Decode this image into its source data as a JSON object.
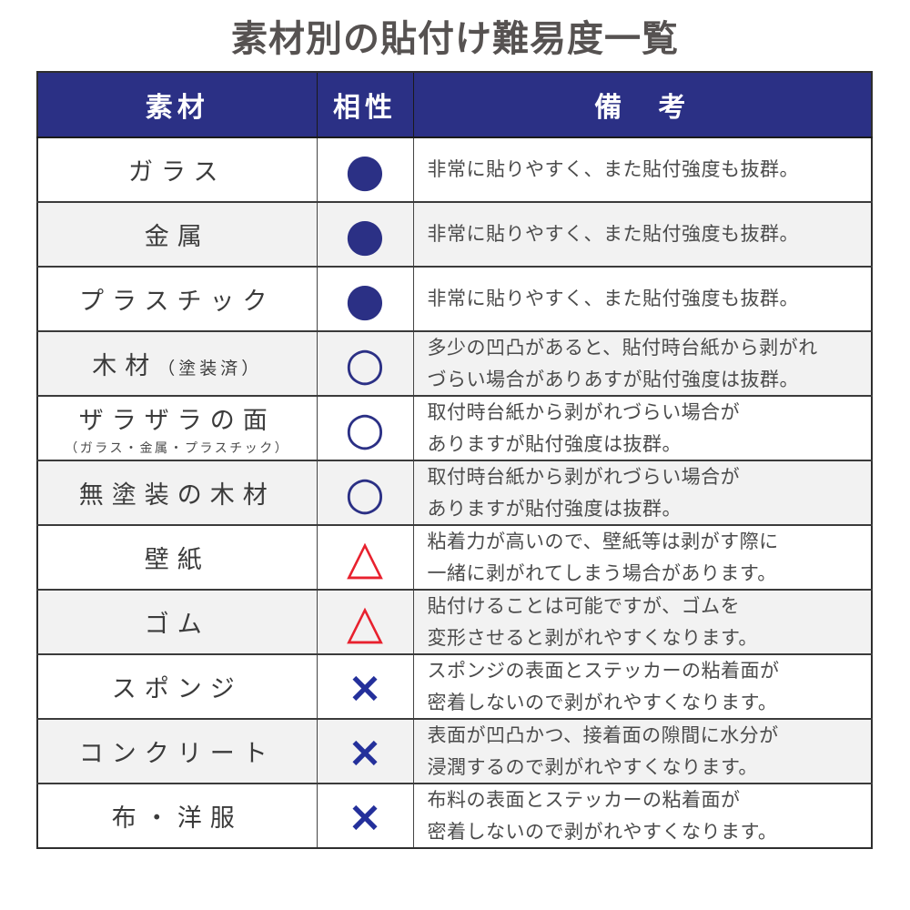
{
  "chart_data": {
    "type": "table",
    "title": "素材別の貼付け難易度一覧",
    "columns": [
      "素材",
      "相性",
      "備　考"
    ],
    "rows": [
      {
        "material": "ガラス",
        "symbol": "●",
        "symbol_type": "filled-circle",
        "remark": "非常に貼りやすく、また貼付強度も抜群。"
      },
      {
        "material": "金属",
        "symbol": "●",
        "symbol_type": "filled-circle",
        "remark": "非常に貼りやすく、また貼付強度も抜群。"
      },
      {
        "material": "プラスチック",
        "symbol": "●",
        "symbol_type": "filled-circle",
        "remark": "非常に貼りやすく、また貼付強度も抜群。"
      },
      {
        "material": "木材",
        "material_suffix": "（塗装済）",
        "symbol": "○",
        "symbol_type": "open-circle",
        "remark": "多少の凹凸があると、貼付時台紙から剥がれ\nづらい場合がありあすが貼付強度は抜群。"
      },
      {
        "material": "ザラザラの面",
        "material_sub": "（ガラス・金属・プラスチック）",
        "symbol": "○",
        "symbol_type": "open-circle",
        "remark": "取付時台紙から剥がれづらい場合が\nありますが貼付強度は抜群。"
      },
      {
        "material": "無塗装の木材",
        "symbol": "○",
        "symbol_type": "open-circle",
        "remark": "取付時台紙から剥がれづらい場合が\nありますが貼付強度は抜群。"
      },
      {
        "material": "壁紙",
        "symbol": "△",
        "symbol_type": "triangle",
        "remark": "粘着力が高いので、壁紙等は剥がす際に\n一緒に剥がれてしまう場合があります。"
      },
      {
        "material": "ゴム",
        "symbol": "△",
        "symbol_type": "triangle",
        "remark": "貼付けることは可能ですが、ゴムを\n変形させると剥がれやすくなります。"
      },
      {
        "material": "スポンジ",
        "symbol": "×",
        "symbol_type": "cross",
        "remark": "スポンジの表面とステッカーの粘着面が\n密着しないので剥がれやすくなります。"
      },
      {
        "material": "コンクリート",
        "symbol": "×",
        "symbol_type": "cross",
        "remark": "表面が凹凸かつ、接着面の隙間に水分が\n浸潤するので剥がれやすくなります。"
      },
      {
        "material": "布・洋服",
        "symbol": "×",
        "symbol_type": "cross",
        "remark": "布料の表面とステッカーの粘着面が\n密着しないので剥がれやすくなります。"
      }
    ],
    "layout": {
      "grid": true,
      "striped_rows": true,
      "header_position": "top"
    }
  },
  "colors": {
    "header_bg": "#2b3085",
    "header_text": "#ffffff",
    "symbol_navy": "#2b3085",
    "symbol_red": "#e8212e",
    "alt_row_bg": "#f2f2f2",
    "title_text": "#565251",
    "border": "#2e2e2e"
  }
}
